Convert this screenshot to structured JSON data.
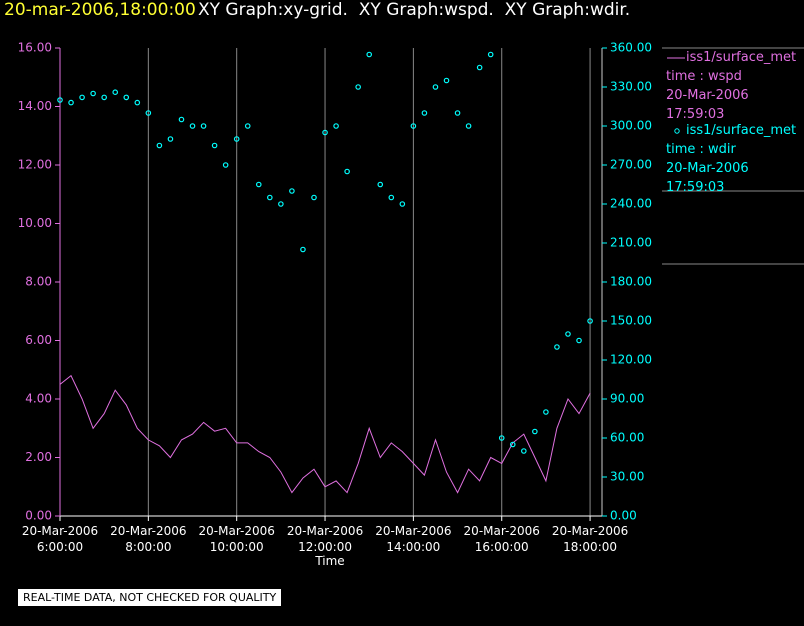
{
  "chart_data": {
    "type": "line",
    "title": "20-mar-2006,18:00:00",
    "subtitle": "XY Graph:xy-grid.  XY Graph:wspd.  XY Graph:wdir.",
    "xlabel": "Time",
    "footnote": "REAL-TIME DATA, NOT CHECKED FOR QUALITY",
    "xlim": [
      6,
      18.27
    ],
    "xticks": [
      {
        "value": 6,
        "label": "20-Mar-2006 6:00:00"
      },
      {
        "value": 8,
        "label": "20-Mar-2006 8:00:00"
      },
      {
        "value": 10,
        "label": "20-Mar-2006 10:00:00"
      },
      {
        "value": 12,
        "label": "20-Mar-2006 12:00:00"
      },
      {
        "value": 14,
        "label": "20-Mar-2006 14:00:00"
      },
      {
        "value": 16,
        "label": "20-Mar-2006 16:00:00"
      },
      {
        "value": 18,
        "label": "20-Mar-2006 18:00:00"
      }
    ],
    "grid": true,
    "ylim": [
      0,
      16
    ],
    "yticks": [
      {
        "value": 0,
        "label": "0.00"
      },
      {
        "value": 2,
        "label": "2.00"
      },
      {
        "value": 4,
        "label": "4.00"
      },
      {
        "value": 6,
        "label": "6.00"
      },
      {
        "value": 8,
        "label": "8.00"
      },
      {
        "value": 10,
        "label": "10.00"
      },
      {
        "value": 12,
        "label": "12.00"
      },
      {
        "value": 14,
        "label": "14.00"
      },
      {
        "value": 16,
        "label": "16.00"
      }
    ],
    "y2lim": [
      0,
      360
    ],
    "y2ticks": [
      {
        "value": 0,
        "label": "0.00"
      },
      {
        "value": 30,
        "label": "30.00"
      },
      {
        "value": 60,
        "label": "60.00"
      },
      {
        "value": 90,
        "label": "90.00"
      },
      {
        "value": 120,
        "label": "120.00"
      },
      {
        "value": 150,
        "label": "150.00"
      },
      {
        "value": 180,
        "label": "180.00"
      },
      {
        "value": 210,
        "label": "210.00"
      },
      {
        "value": 240,
        "label": "240.00"
      },
      {
        "value": 270,
        "label": "270.00"
      },
      {
        "value": 300,
        "label": "300.00"
      },
      {
        "value": 330,
        "label": "330.00"
      },
      {
        "value": 360,
        "label": "360.00"
      }
    ],
    "x": [
      6,
      6.25,
      6.5,
      6.75,
      7,
      7.25,
      7.5,
      7.75,
      8,
      8.25,
      8.5,
      8.75,
      9,
      9.25,
      9.5,
      9.75,
      10,
      10.25,
      10.5,
      10.75,
      11,
      11.25,
      11.5,
      11.75,
      12,
      12.25,
      12.5,
      12.75,
      13,
      13.25,
      13.5,
      13.75,
      14,
      14.25,
      14.5,
      14.75,
      15,
      15.25,
      15.5,
      15.75,
      16,
      16.25,
      16.5,
      16.75,
      17,
      17.25,
      17.5,
      17.75,
      18
    ],
    "series": [
      {
        "name": "iss1/surface_met",
        "variable": "time : wspd",
        "date": "20-Mar-2006",
        "time": "17:59:03",
        "type": "line",
        "color": "#e070e0",
        "axis": "y",
        "values": [
          4.5,
          4.8,
          4.0,
          3.0,
          3.5,
          4.3,
          3.8,
          3.0,
          2.6,
          2.4,
          2.0,
          2.6,
          2.8,
          3.2,
          2.9,
          3.0,
          2.5,
          2.5,
          2.2,
          2.0,
          1.5,
          0.8,
          1.3,
          1.6,
          1.0,
          1.2,
          0.8,
          1.8,
          3.0,
          2.0,
          2.5,
          2.2,
          1.8,
          1.4,
          2.6,
          1.5,
          0.8,
          1.6,
          1.2,
          2.0,
          1.8,
          2.5,
          2.8,
          2.0,
          1.2,
          3.0,
          4.0,
          3.5,
          4.2
        ]
      },
      {
        "name": "iss1/surface_met",
        "variable": "time : wdir",
        "date": "20-Mar-2006",
        "time": "17:59:03",
        "type": "scatter",
        "color": "#00ffff",
        "axis": "y2",
        "values": [
          320,
          318,
          322,
          325,
          322,
          326,
          322,
          318,
          310,
          285,
          290,
          305,
          300,
          300,
          285,
          270,
          290,
          300,
          255,
          245,
          240,
          250,
          205,
          245,
          295,
          300,
          265,
          330,
          355,
          255,
          245,
          240,
          300,
          310,
          330,
          335,
          310,
          300,
          345,
          355,
          60,
          55,
          50,
          65,
          80,
          130,
          140,
          135,
          150
        ]
      }
    ]
  }
}
